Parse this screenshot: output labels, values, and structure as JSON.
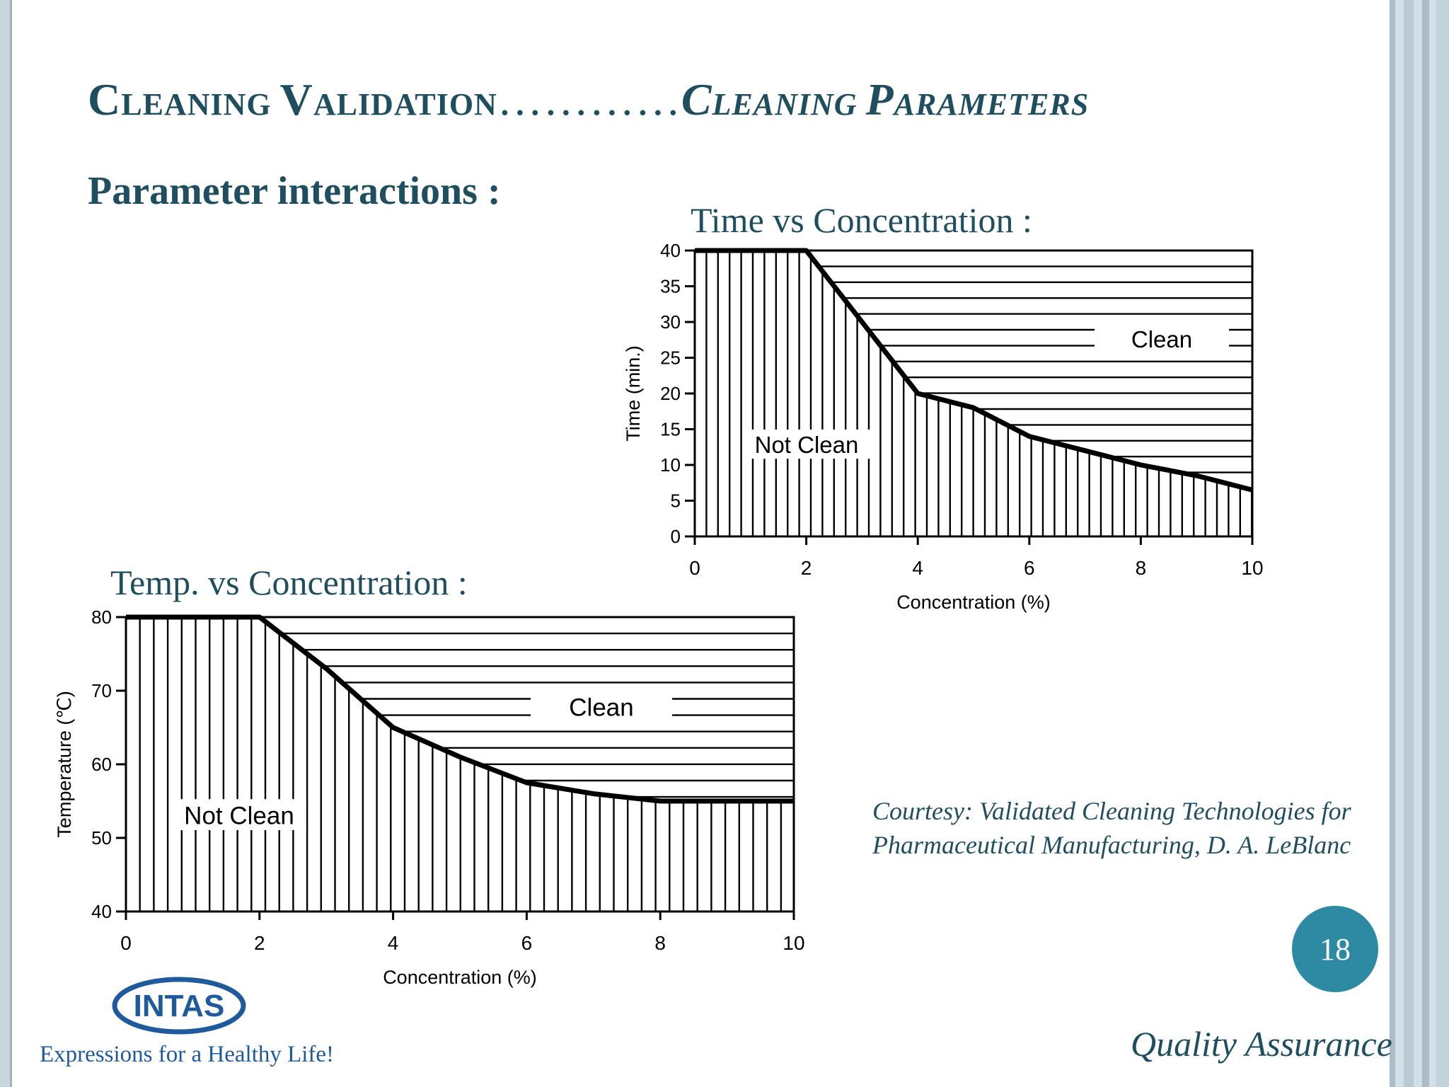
{
  "slide": {
    "title_part1_cap": "C",
    "title_part1_rest": "LEANING ",
    "title_part2_cap": "V",
    "title_part2_rest": "ALIDATION",
    "title_dots": "…………",
    "title_part3_cap": "C",
    "title_part3_rest": "LEANING ",
    "title_part4_cap": "P",
    "title_part4_rest": "ARAMETERS",
    "subtitle": "Parameter interactions :",
    "chart1_caption": "Time vs Concentration :",
    "chart2_caption": "Temp. vs Concentration :",
    "courtesy_line1": "Courtesy: Validated Cleaning Technologies for",
    "courtesy_line2": "Pharmaceutical Manufacturing, D. A. LeBlanc",
    "page_number": "18",
    "footer_right": "Quality Assurance",
    "logo_text": "INTAS",
    "tagline": "Expressions for a Healthy Life!"
  },
  "colors": {
    "title": "#1f4e5f",
    "page_badge": "#2e8aa3",
    "logo_blue": "#1e5a9c"
  },
  "chart_data": [
    {
      "type": "area",
      "xlabel": "Concentration (%)",
      "ylabel": "Time (min.)",
      "xlim": [
        0,
        10
      ],
      "ylim": [
        0,
        40
      ],
      "xticks": [
        0,
        2,
        4,
        6,
        8,
        10
      ],
      "yticks": [
        0,
        5,
        10,
        15,
        20,
        25,
        30,
        35,
        40
      ],
      "boundary": {
        "x": [
          0,
          2,
          3,
          4,
          5,
          6,
          7,
          8,
          9,
          10
        ],
        "y": [
          40,
          40,
          30,
          20,
          18,
          14,
          12,
          10,
          8.5,
          6.5
        ]
      },
      "regions": [
        "Not Clean",
        "Clean"
      ]
    },
    {
      "type": "area",
      "xlabel": "Concentration (%)",
      "ylabel": "Temperature (℃)",
      "xlim": [
        0,
        10
      ],
      "ylim": [
        40,
        80
      ],
      "xticks": [
        0,
        2,
        4,
        6,
        8,
        10
      ],
      "yticks": [
        40,
        50,
        60,
        70,
        80
      ],
      "boundary": {
        "x": [
          0,
          2,
          3,
          4,
          5,
          6,
          7,
          8,
          10
        ],
        "y": [
          80,
          80,
          73,
          65,
          61,
          57.5,
          56,
          55,
          55
        ]
      },
      "regions": [
        "Not Clean",
        "Clean"
      ]
    }
  ]
}
